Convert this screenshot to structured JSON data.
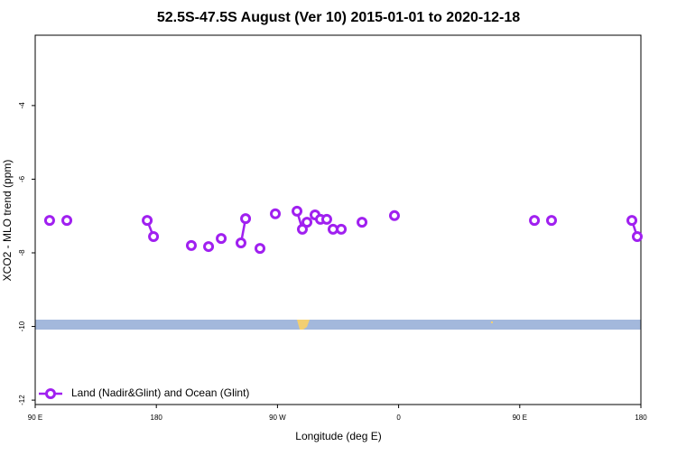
{
  "chart_data": {
    "type": "line",
    "title": "52.5S-47.5S August (Ver 10)   2015-01-01 to 2020-12-18",
    "xlabel": "Longitude (deg E)",
    "ylabel": "XCO2 - MLO trend (ppm)",
    "xlim": [
      90,
      540
    ],
    "ylim": [
      -12.12,
      -2.09
    ],
    "xticks": [
      {
        "value": 90,
        "label": "90 E"
      },
      {
        "value": 180,
        "label": "180"
      },
      {
        "value": 270,
        "label": "90 W"
      },
      {
        "value": 360,
        "label": "0"
      },
      {
        "value": 450,
        "label": "90 E"
      },
      {
        "value": 540,
        "label": "180"
      }
    ],
    "yticks": [
      -12,
      -10,
      -8,
      -6,
      -4
    ],
    "legend": "bottom-left",
    "series": [
      {
        "name": "Land (Nadir&Glint) and Ocean (Glint)",
        "color": "#a020f0",
        "x": [
          100.7,
          null,
          113.5,
          null,
          173.2,
          177.9,
          null,
          206,
          null,
          218.8,
          null,
          228.2,
          null,
          242.9,
          246.3,
          null,
          257,
          null,
          268.4,
          null,
          284.5,
          288.5,
          291.9,
          null,
          297.9,
          null,
          301.9,
          null,
          306.6,
          null,
          311.3,
          null,
          317.4,
          null,
          332.8,
          null,
          356.9,
          null,
          460.9,
          null,
          473.6,
          null,
          533.3,
          537.3
        ],
        "values": [
          -7.12,
          null,
          -7.12,
          null,
          -7.12,
          -7.56,
          null,
          -7.8,
          null,
          -7.83,
          null,
          -7.61,
          null,
          -7.73,
          -7.07,
          null,
          -7.88,
          null,
          -6.94,
          null,
          -6.87,
          -7.36,
          -7.17,
          null,
          -6.97,
          null,
          -7.09,
          null,
          -7.09,
          null,
          -7.36,
          null,
          -7.36,
          null,
          -7.17,
          null,
          -6.99,
          null,
          -7.12,
          null,
          -7.12,
          null,
          -7.12,
          -7.56
        ]
      }
    ]
  }
}
